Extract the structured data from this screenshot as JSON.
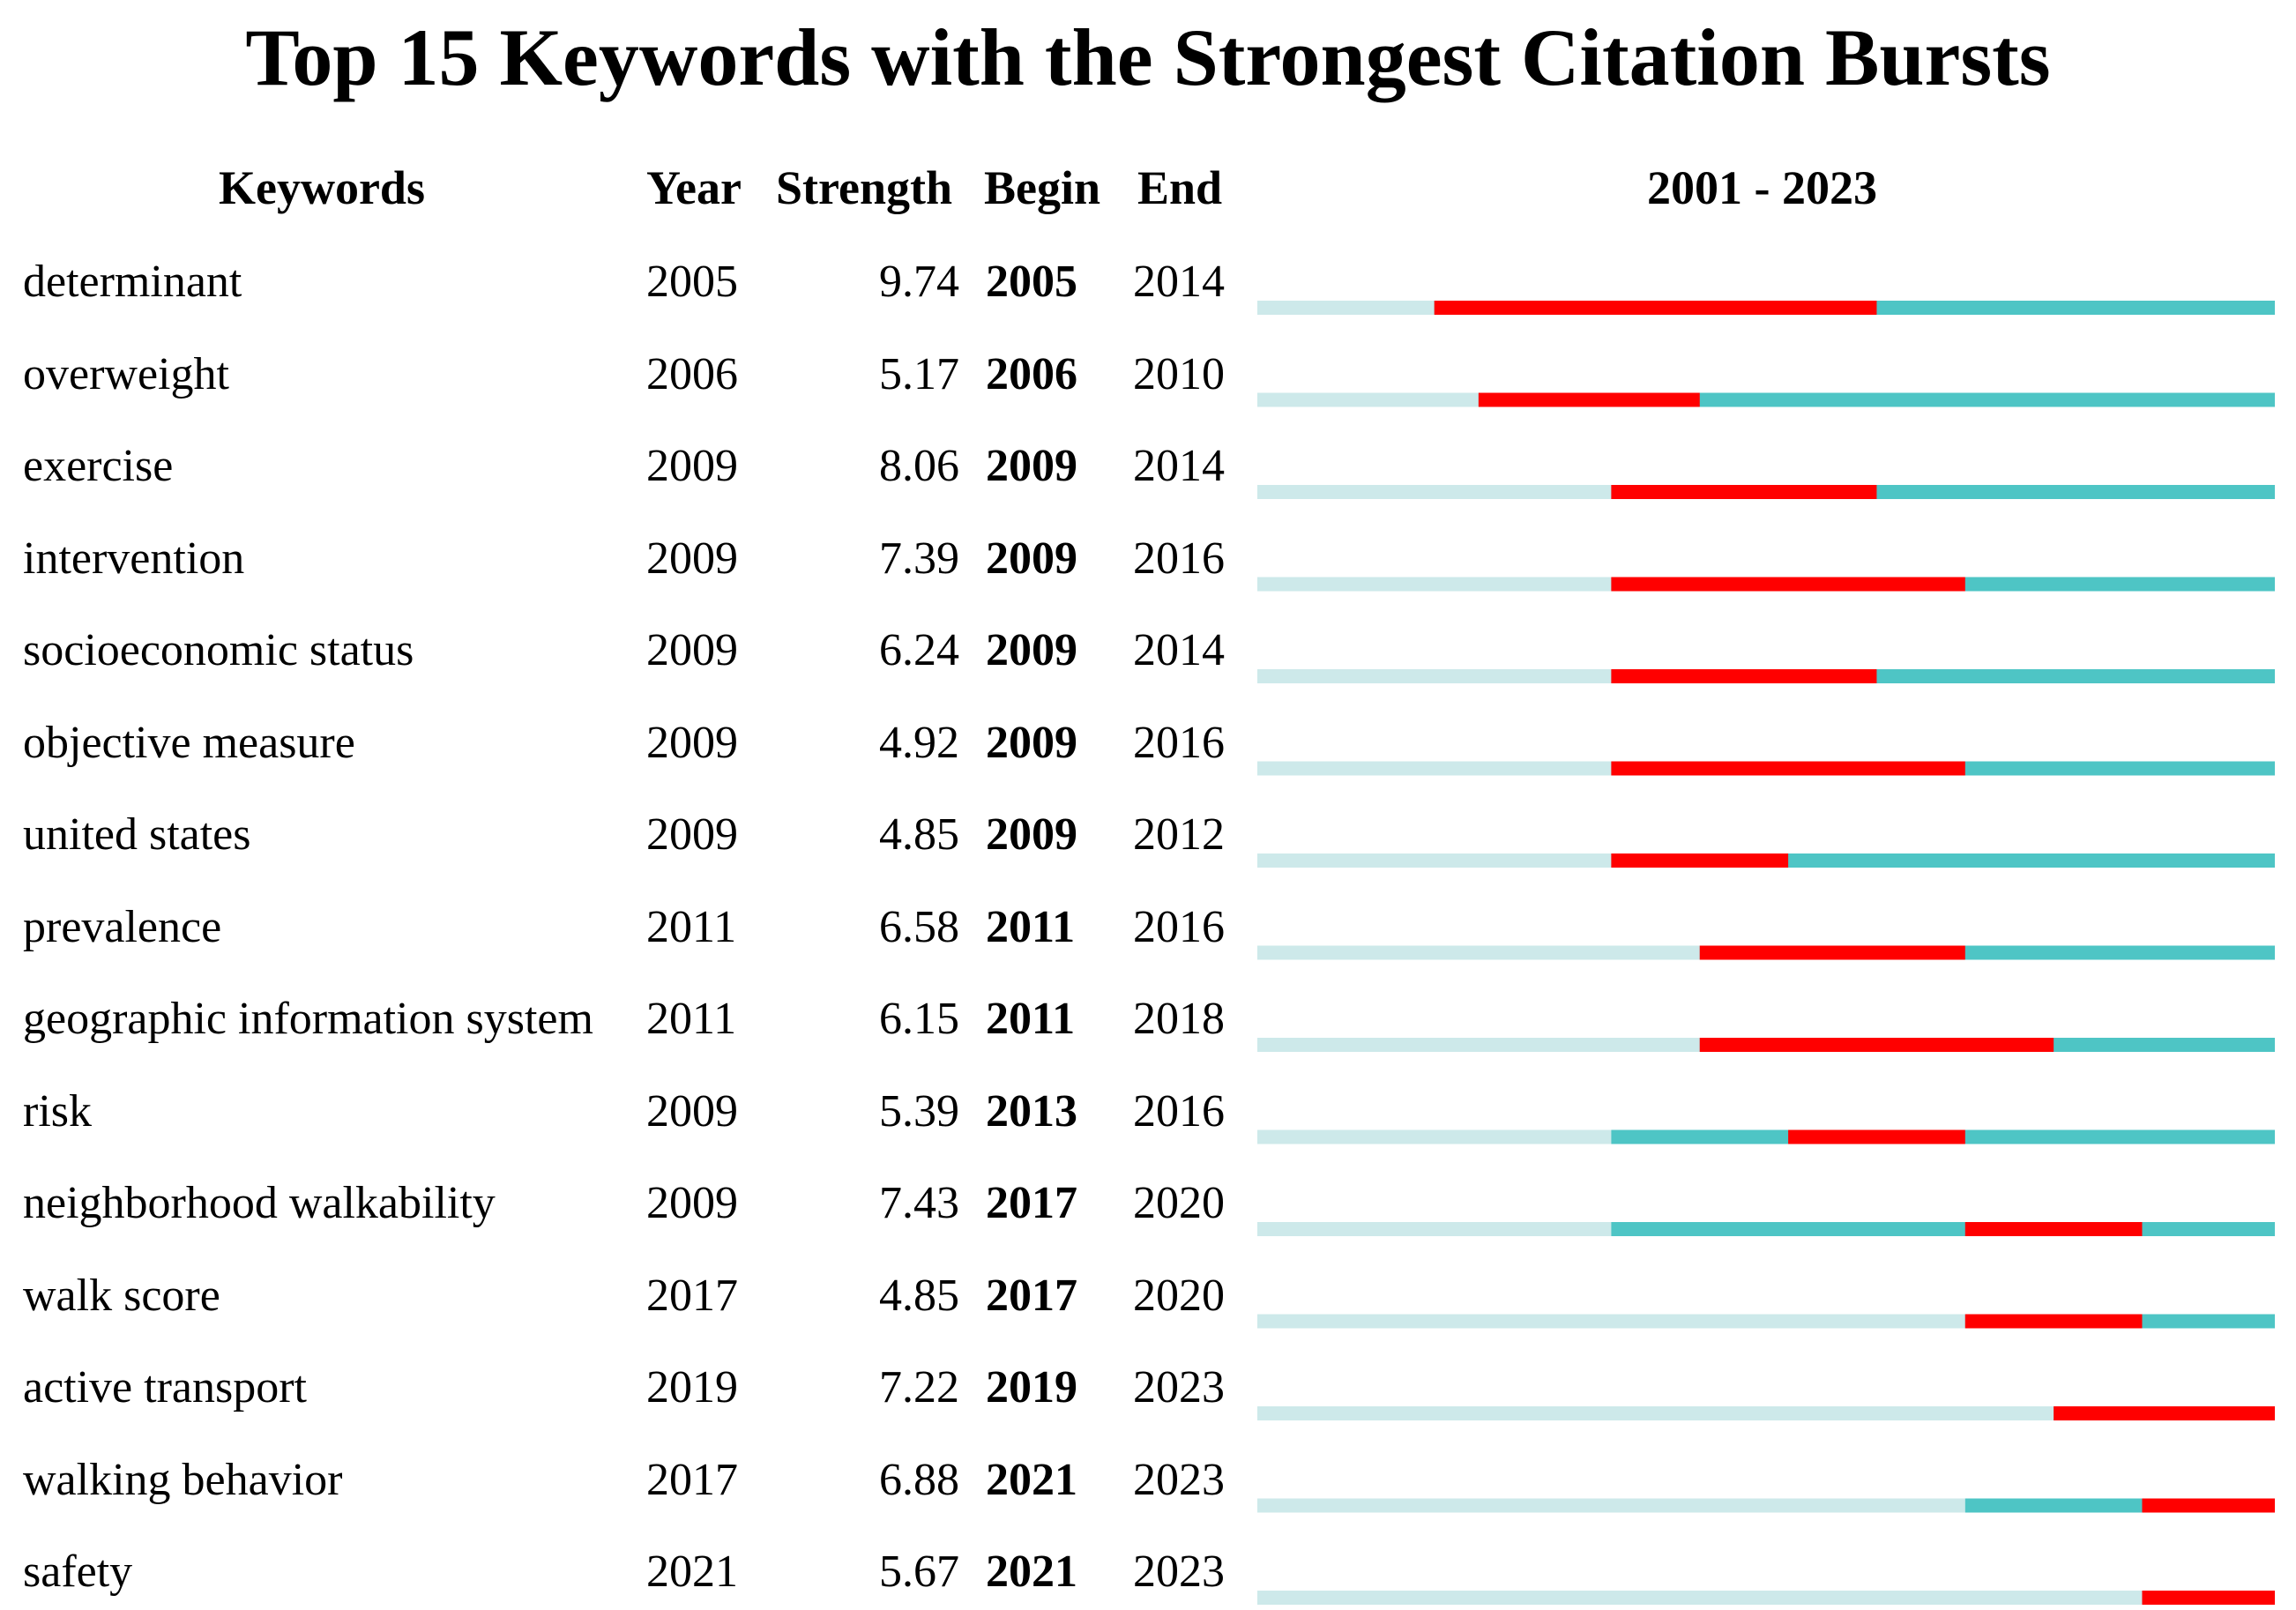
{
  "chart_data": {
    "type": "table",
    "title": "Top 15 Keywords with the Strongest Citation Bursts",
    "columns": {
      "keyword": "Keywords",
      "year": "Year",
      "strength": "Strength",
      "begin": "Begin",
      "end": "End",
      "range": "2001 - 2023"
    },
    "range_start": 2001,
    "range_end": 2023,
    "colors": {
      "inactive": "#cde9ea",
      "active": "#4ec5c5",
      "burst": "#ff0000"
    },
    "rows": [
      {
        "keyword": "determinant",
        "year": "2005",
        "strength": "9.74",
        "begin": "2005",
        "end": "2014"
      },
      {
        "keyword": "overweight",
        "year": "2006",
        "strength": "5.17",
        "begin": "2006",
        "end": "2010"
      },
      {
        "keyword": "exercise",
        "year": "2009",
        "strength": "8.06",
        "begin": "2009",
        "end": "2014"
      },
      {
        "keyword": "intervention",
        "year": "2009",
        "strength": "7.39",
        "begin": "2009",
        "end": "2016"
      },
      {
        "keyword": "socioeconomic status",
        "year": "2009",
        "strength": "6.24",
        "begin": "2009",
        "end": "2014"
      },
      {
        "keyword": "objective measure",
        "year": "2009",
        "strength": "4.92",
        "begin": "2009",
        "end": "2016"
      },
      {
        "keyword": "united states",
        "year": "2009",
        "strength": "4.85",
        "begin": "2009",
        "end": "2012"
      },
      {
        "keyword": "prevalence",
        "year": "2011",
        "strength": "6.58",
        "begin": "2011",
        "end": "2016"
      },
      {
        "keyword": "geographic information system",
        "year": "2011",
        "strength": "6.15",
        "begin": "2011",
        "end": "2018"
      },
      {
        "keyword": "risk",
        "year": "2009",
        "strength": "5.39",
        "begin": "2013",
        "end": "2016"
      },
      {
        "keyword": "neighborhood walkability",
        "year": "2009",
        "strength": "7.43",
        "begin": "2017",
        "end": "2020"
      },
      {
        "keyword": "walk score",
        "year": "2017",
        "strength": "4.85",
        "begin": "2017",
        "end": "2020"
      },
      {
        "keyword": "active transport",
        "year": "2019",
        "strength": "7.22",
        "begin": "2019",
        "end": "2023"
      },
      {
        "keyword": "walking behavior",
        "year": "2017",
        "strength": "6.88",
        "begin": "2021",
        "end": "2023"
      },
      {
        "keyword": "safety",
        "year": "2021",
        "strength": "5.67",
        "begin": "2021",
        "end": "2023"
      }
    ]
  }
}
